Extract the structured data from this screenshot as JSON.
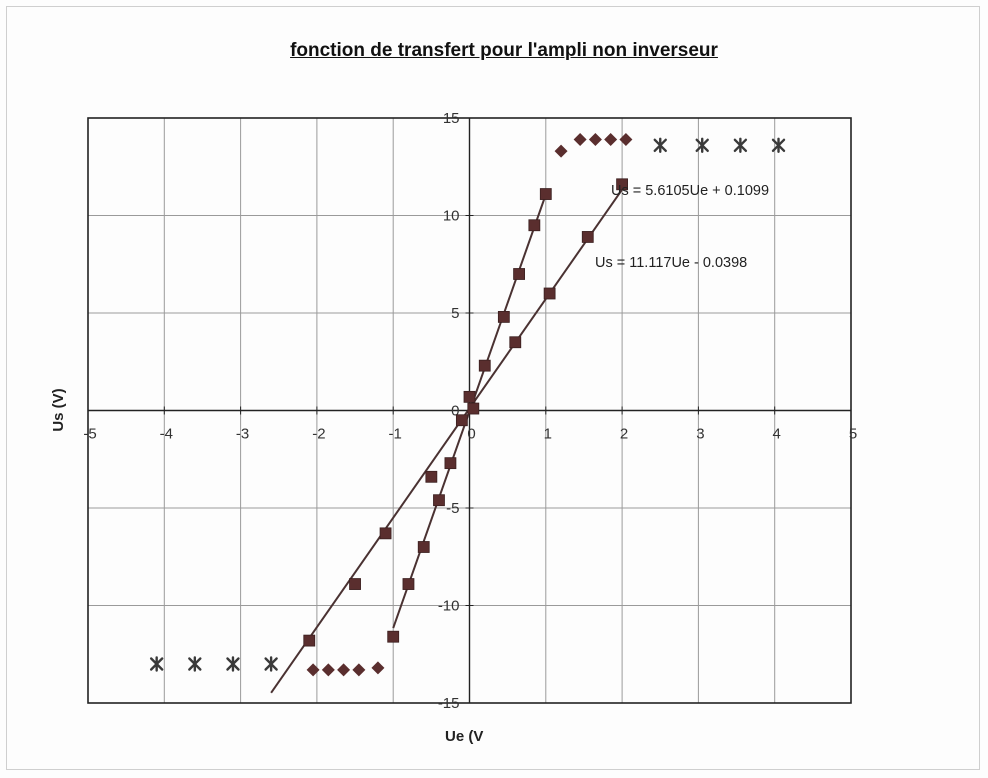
{
  "chart_data": {
    "type": "scatter",
    "title": "fonction de transfert pour l'ampli non inverseur",
    "xlabel": "Ue (V",
    "ylabel": "Us (V)",
    "xlim": [
      -5,
      5
    ],
    "ylim": [
      -15,
      15
    ],
    "xticks": [
      "-5",
      "-4",
      "-3",
      "-2",
      "-1",
      "0",
      "1",
      "2",
      "3",
      "4",
      "5"
    ],
    "yticks": [
      "15",
      "10",
      "5",
      "0",
      "-5",
      "-10",
      "-15"
    ],
    "grid": true,
    "legend": "none",
    "series": [
      {
        "marker": "square",
        "x": [
          -2.1,
          -1.5,
          -1.1,
          -0.5,
          -0.1,
          0.05,
          0.6,
          1.05,
          1.55,
          2.0
        ],
        "y": [
          -11.8,
          -8.9,
          -6.3,
          -3.4,
          -0.5,
          0.1,
          3.5,
          6.0,
          8.9,
          11.6
        ]
      },
      {
        "marker": "square",
        "x": [
          -1.0,
          -0.8,
          -0.6,
          -0.4,
          -0.25,
          0.0,
          0.2,
          0.45,
          0.65,
          0.85,
          1.0
        ],
        "y": [
          -11.6,
          -8.9,
          -7.0,
          -4.6,
          -2.7,
          0.7,
          2.3,
          4.8,
          7.0,
          9.5,
          11.1
        ]
      },
      {
        "marker": "diamond",
        "x": [
          -2.05,
          -1.85,
          -1.65,
          -1.45,
          -1.2
        ],
        "y": [
          -13.3,
          -13.3,
          -13.3,
          -13.3,
          -13.2
        ]
      },
      {
        "marker": "diamond",
        "x": [
          1.2,
          1.45,
          1.65,
          1.85,
          2.05
        ],
        "y": [
          13.3,
          13.9,
          13.9,
          13.9,
          13.9
        ]
      },
      {
        "marker": "asterisk",
        "x": [
          -4.1,
          -3.6,
          -3.1,
          -2.6
        ],
        "y": [
          -13.0,
          -13.0,
          -13.0,
          -13.0
        ]
      },
      {
        "marker": "asterisk",
        "x": [
          2.5,
          3.05,
          3.55,
          4.05
        ],
        "y": [
          13.6,
          13.6,
          13.6,
          13.6
        ]
      }
    ],
    "trendlines": [
      {
        "slope": 5.6105,
        "intercept": 0.1099,
        "x_range": [
          -2.6,
          2.0
        ],
        "equation": "Us = 5.6105Ue + 0.1099"
      },
      {
        "slope": 11.117,
        "intercept": -0.0398,
        "x_range": [
          -1.0,
          1.0
        ],
        "equation": "Us = 11.117Ue - 0.0398"
      }
    ],
    "colors": {
      "marker": "#5a2e2e",
      "marker_cross": "#3a3a3a",
      "line": "#4a3232",
      "grid": "#9a9a9a"
    }
  }
}
